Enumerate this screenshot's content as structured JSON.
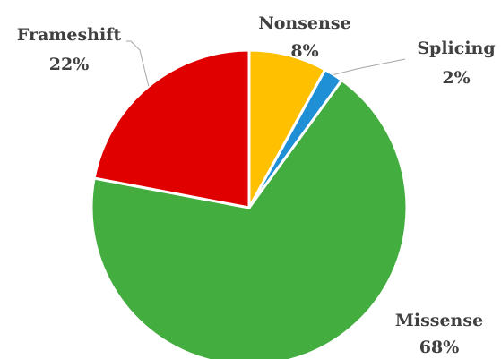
{
  "chart_data": {
    "type": "pie",
    "title": "",
    "slices": [
      {
        "label": "Nonsense",
        "value": 8,
        "value_label": "8%",
        "color": "#FFC000"
      },
      {
        "label": "Splicing",
        "value": 2,
        "value_label": "2%",
        "color": "#1F8FD6"
      },
      {
        "label": "Missense",
        "value": 68,
        "value_label": "68%",
        "color": "#43AE3F"
      },
      {
        "label": "Frameshift",
        "value": 22,
        "value_label": "22%",
        "color": "#E00000"
      }
    ],
    "start_angle": "12 o'clock",
    "direction": "clockwise",
    "legend": "none",
    "data_labels": "category name and percentage outside slices"
  }
}
